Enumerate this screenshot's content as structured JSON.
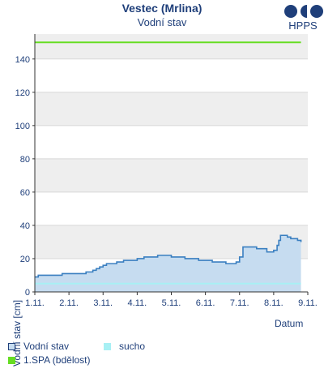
{
  "header": {
    "title": "Vestec (Mrlina)",
    "subtitle": "Vodní stav",
    "logo_text": "HPPS"
  },
  "chart_data": {
    "type": "area",
    "title": "Vestec (Mrlina)",
    "subtitle": "Vodní stav",
    "xlabel": "Datum",
    "ylabel": "Vodní stav [cm]",
    "ylim": [
      0,
      155
    ],
    "yticks": [
      0,
      20,
      40,
      60,
      80,
      100,
      120,
      140
    ],
    "xlim": [
      0,
      8
    ],
    "xtick_labels": [
      "1.11.",
      "2.11.",
      "3.11.",
      "4.11.",
      "5.11.",
      "6.11.",
      "7.11.",
      "8.11.",
      "9.11."
    ],
    "grid": "horizontal alternating bands",
    "series": [
      {
        "name": "Vodní stav",
        "kind": "area",
        "color": "#3a7fc0",
        "fill": "#c6dcf0",
        "x": [
          0.0,
          0.1,
          0.4,
          0.8,
          1.3,
          1.5,
          1.7,
          1.8,
          1.9,
          2.0,
          2.1,
          2.2,
          2.4,
          2.6,
          2.8,
          2.9,
          3.0,
          3.1,
          3.2,
          3.4,
          3.6,
          3.8,
          4.0,
          4.2,
          4.4,
          4.6,
          4.8,
          5.0,
          5.2,
          5.4,
          5.6,
          5.8,
          5.9,
          6.0,
          6.1,
          6.3,
          6.5,
          6.8,
          7.0,
          7.1,
          7.15,
          7.2,
          7.3,
          7.4,
          7.5,
          7.6,
          7.7,
          7.8
        ],
        "y": [
          9,
          10,
          10,
          11,
          11,
          12,
          13,
          14,
          15,
          16,
          17,
          17,
          18,
          19,
          19,
          19,
          20,
          20,
          21,
          21,
          22,
          22,
          21,
          21,
          20,
          20,
          19,
          19,
          18,
          18,
          17,
          17,
          18,
          21,
          27,
          27,
          26,
          24,
          25,
          28,
          31,
          34,
          34,
          33,
          32,
          32,
          31,
          30
        ]
      },
      {
        "name": "sucho",
        "kind": "line",
        "color": "#a8f0f4",
        "x": [
          0,
          7.8
        ],
        "y": [
          5,
          5
        ]
      },
      {
        "name": "1.SPA (bdělost)",
        "kind": "line",
        "color": "#66dd22",
        "x": [
          0,
          7.8
        ],
        "y": [
          150,
          150
        ]
      }
    ]
  },
  "legend": {
    "items": [
      {
        "label": "Vodní stav",
        "color": "#c6dcf0",
        "border": "#1f3f7a"
      },
      {
        "label": "sucho",
        "color": "#a8f0f4",
        "border": "#a8f0f4"
      },
      {
        "label": "1.SPA (bdělost)",
        "color": "#66dd22",
        "border": "#66dd22"
      }
    ]
  }
}
